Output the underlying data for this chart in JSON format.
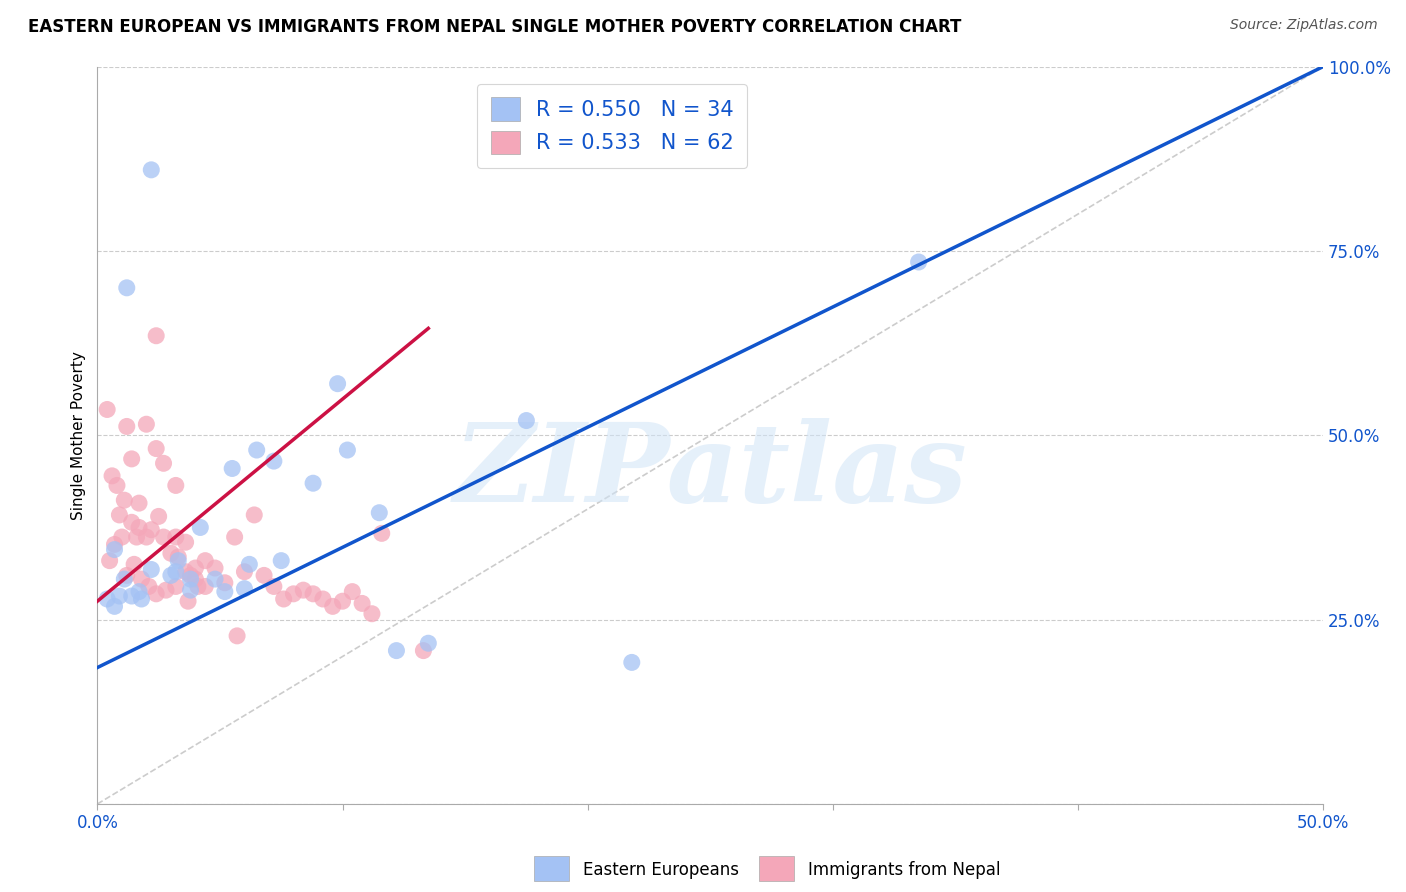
{
  "title": "EASTERN EUROPEAN VS IMMIGRANTS FROM NEPAL SINGLE MOTHER POVERTY CORRELATION CHART",
  "source": "Source: ZipAtlas.com",
  "ylabel": "Single Mother Poverty",
  "xlim": [
    0,
    0.5
  ],
  "ylim": [
    0,
    1.0
  ],
  "blue_R": 0.55,
  "blue_N": 34,
  "pink_R": 0.533,
  "pink_N": 62,
  "watermark": "ZIPatlas",
  "blue_color": "#a4c2f4",
  "pink_color": "#f4a7b9",
  "blue_line_color": "#1155cc",
  "pink_line_color": "#cc1144",
  "grid_color": "#cccccc",
  "ref_line_color": "#cccccc",
  "background_color": "#ffffff",
  "tick_color": "#1155cc",
  "blue_points_x": [
    0.022,
    0.012,
    0.042,
    0.098,
    0.175,
    0.032,
    0.007,
    0.011,
    0.018,
    0.022,
    0.055,
    0.065,
    0.072,
    0.102,
    0.115,
    0.038,
    0.048,
    0.062,
    0.075,
    0.088,
    0.007,
    0.004,
    0.009,
    0.014,
    0.017,
    0.03,
    0.033,
    0.038,
    0.052,
    0.06,
    0.122,
    0.135,
    0.218,
    0.335
  ],
  "blue_points_y": [
    0.86,
    0.7,
    0.375,
    0.57,
    0.52,
    0.315,
    0.345,
    0.305,
    0.278,
    0.318,
    0.455,
    0.48,
    0.465,
    0.48,
    0.395,
    0.29,
    0.305,
    0.325,
    0.33,
    0.435,
    0.268,
    0.278,
    0.282,
    0.282,
    0.288,
    0.31,
    0.33,
    0.305,
    0.288,
    0.292,
    0.208,
    0.218,
    0.192,
    0.735
  ],
  "pink_points_x": [
    0.024,
    0.004,
    0.006,
    0.008,
    0.009,
    0.011,
    0.014,
    0.016,
    0.017,
    0.02,
    0.022,
    0.025,
    0.027,
    0.03,
    0.032,
    0.033,
    0.036,
    0.038,
    0.04,
    0.044,
    0.048,
    0.052,
    0.056,
    0.06,
    0.064,
    0.068,
    0.072,
    0.076,
    0.08,
    0.084,
    0.088,
    0.092,
    0.096,
    0.1,
    0.104,
    0.108,
    0.112,
    0.116,
    0.012,
    0.014,
    0.017,
    0.02,
    0.024,
    0.027,
    0.032,
    0.036,
    0.04,
    0.044,
    0.005,
    0.007,
    0.01,
    0.012,
    0.015,
    0.018,
    0.021,
    0.024,
    0.028,
    0.032,
    0.037,
    0.041,
    0.057,
    0.133
  ],
  "pink_points_y": [
    0.635,
    0.535,
    0.445,
    0.432,
    0.392,
    0.412,
    0.382,
    0.362,
    0.375,
    0.362,
    0.372,
    0.39,
    0.362,
    0.34,
    0.362,
    0.335,
    0.315,
    0.31,
    0.305,
    0.295,
    0.32,
    0.3,
    0.362,
    0.315,
    0.392,
    0.31,
    0.295,
    0.278,
    0.285,
    0.29,
    0.285,
    0.278,
    0.268,
    0.275,
    0.288,
    0.272,
    0.258,
    0.367,
    0.512,
    0.468,
    0.408,
    0.515,
    0.482,
    0.462,
    0.432,
    0.355,
    0.32,
    0.33,
    0.33,
    0.352,
    0.362,
    0.31,
    0.325,
    0.305,
    0.295,
    0.285,
    0.29,
    0.295,
    0.275,
    0.295,
    0.228,
    0.208
  ],
  "blue_line_x": [
    0.0,
    0.5
  ],
  "blue_line_y": [
    0.185,
    1.0
  ],
  "pink_line_x": [
    0.0,
    0.135
  ],
  "pink_line_y": [
    0.275,
    0.645
  ],
  "ref_line_x": [
    0.0,
    0.5
  ],
  "ref_line_y": [
    0.0,
    1.0
  ]
}
